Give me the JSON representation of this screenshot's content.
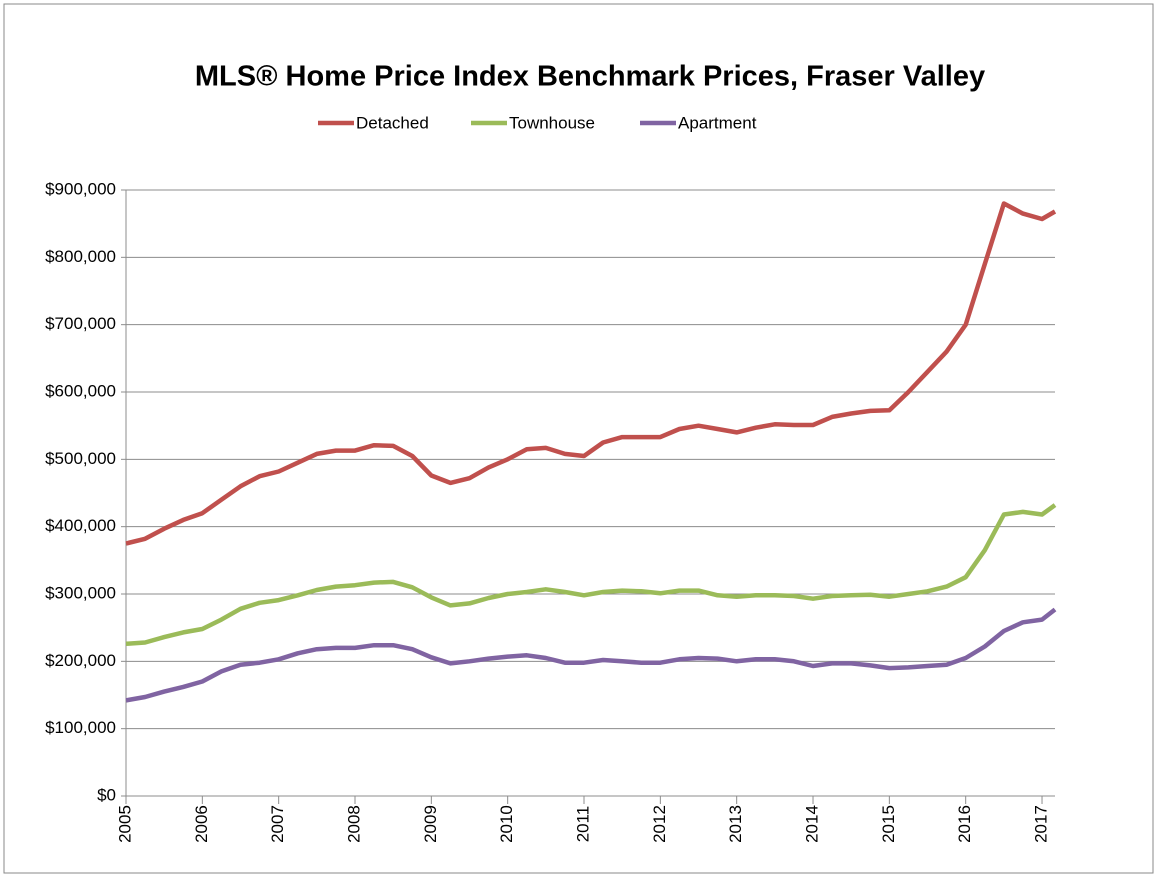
{
  "chart_data": {
    "type": "line",
    "title": "MLS® Home Price Index Benchmark Prices, Fraser Valley",
    "x": [
      2005,
      2005.25,
      2005.5,
      2005.75,
      2006,
      2006.25,
      2006.5,
      2006.75,
      2007,
      2007.25,
      2007.5,
      2007.75,
      2008,
      2008.25,
      2008.5,
      2008.75,
      2009,
      2009.25,
      2009.5,
      2009.75,
      2010,
      2010.25,
      2010.5,
      2010.75,
      2011,
      2011.25,
      2011.5,
      2011.75,
      2012,
      2012.25,
      2012.5,
      2012.75,
      2013,
      2013.25,
      2013.5,
      2013.75,
      2014,
      2014.25,
      2014.5,
      2014.75,
      2015,
      2015.25,
      2015.5,
      2015.75,
      2016,
      2016.25,
      2016.5,
      2016.75,
      2017,
      2017.17
    ],
    "series": [
      {
        "name": "Detached",
        "color": "#c0504d",
        "values": [
          375000,
          382000,
          397000,
          410000,
          420000,
          440000,
          460000,
          475000,
          482000,
          495000,
          508000,
          513000,
          513000,
          521000,
          520000,
          505000,
          476000,
          465000,
          472000,
          488000,
          500000,
          515000,
          517000,
          508000,
          505000,
          525000,
          533000,
          533000,
          533000,
          545000,
          550000,
          545000,
          540000,
          547000,
          552000,
          551000,
          551000,
          563000,
          568000,
          572000,
          573000,
          600000,
          630000,
          660000,
          700000,
          790000,
          880000,
          865000,
          857000,
          868000
        ]
      },
      {
        "name": "Townhouse",
        "color": "#9bbb59",
        "values": [
          226000,
          228000,
          236000,
          243000,
          248000,
          262000,
          278000,
          287000,
          291000,
          298000,
          306000,
          311000,
          313000,
          317000,
          318000,
          310000,
          295000,
          283000,
          286000,
          294000,
          300000,
          303000,
          307000,
          303000,
          298000,
          303000,
          305000,
          304000,
          301000,
          305000,
          305000,
          298000,
          296000,
          298000,
          298000,
          297000,
          293000,
          297000,
          298000,
          299000,
          296000,
          300000,
          304000,
          311000,
          325000,
          365000,
          418000,
          422000,
          418000,
          432000
        ]
      },
      {
        "name": "Apartment",
        "color": "#8064a2",
        "values": [
          142000,
          147000,
          155000,
          162000,
          170000,
          185000,
          195000,
          198000,
          203000,
          212000,
          218000,
          220000,
          220000,
          224000,
          224000,
          218000,
          206000,
          197000,
          200000,
          204000,
          207000,
          209000,
          205000,
          198000,
          198000,
          202000,
          200000,
          198000,
          198000,
          203000,
          205000,
          204000,
          200000,
          203000,
          203000,
          200000,
          193000,
          197000,
          197000,
          194000,
          190000,
          191000,
          193000,
          195000,
          205000,
          222000,
          245000,
          258000,
          262000,
          277000
        ]
      }
    ],
    "xlim": [
      2005,
      2017.17
    ],
    "xticks": [
      2005,
      2006,
      2007,
      2008,
      2009,
      2010,
      2011,
      2012,
      2013,
      2014,
      2015,
      2016,
      2017
    ],
    "ylim": [
      0,
      900000
    ],
    "yticks": [
      {
        "value": 0,
        "label": "$0"
      },
      {
        "value": 100000,
        "label": "$100,000"
      },
      {
        "value": 200000,
        "label": "$200,000"
      },
      {
        "value": 300000,
        "label": "$300,000"
      },
      {
        "value": 400000,
        "label": "$400,000"
      },
      {
        "value": 500000,
        "label": "$500,000"
      },
      {
        "value": 600000,
        "label": "$600,000"
      },
      {
        "value": 700000,
        "label": "$700,000"
      },
      {
        "value": 800000,
        "label": "$800,000"
      },
      {
        "value": 900000,
        "label": "$900,000"
      }
    ],
    "grid": true,
    "legend": "top"
  }
}
